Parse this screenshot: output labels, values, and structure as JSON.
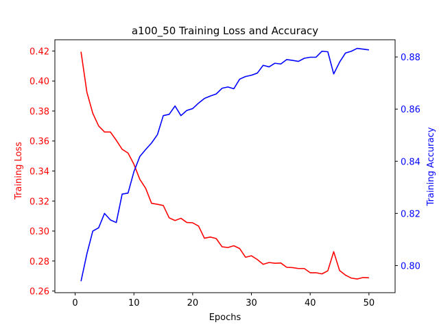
{
  "chart_data": {
    "type": "line",
    "title": "a100_50 Training Loss and Accuracy",
    "xlabel": "Epochs",
    "x": [
      1,
      2,
      3,
      4,
      5,
      6,
      7,
      8,
      9,
      10,
      11,
      12,
      13,
      14,
      15,
      16,
      17,
      18,
      19,
      20,
      21,
      22,
      23,
      24,
      25,
      26,
      27,
      28,
      29,
      30,
      31,
      32,
      33,
      34,
      35,
      36,
      37,
      38,
      39,
      40,
      41,
      42,
      43,
      44,
      45,
      46,
      47,
      48,
      49,
      50
    ],
    "xlim": [
      -3.45,
      54.45
    ],
    "xticks": [
      0,
      10,
      20,
      30,
      40,
      50
    ],
    "grid": false,
    "legend": "none",
    "series": [
      {
        "axis": "left",
        "ylabel": "Training Loss",
        "color": "#ff0000",
        "ylim": [
          0.2589,
          0.4275
        ],
        "yticks": [
          0.26,
          0.28,
          0.3,
          0.32,
          0.34,
          0.36,
          0.38,
          0.4,
          0.42
        ],
        "values": [
          0.4195,
          0.3925,
          0.3785,
          0.37,
          0.366,
          0.366,
          0.3605,
          0.3545,
          0.352,
          0.3445,
          0.3345,
          0.3285,
          0.3185,
          0.3178,
          0.317,
          0.3088,
          0.307,
          0.3085,
          0.3057,
          0.3055,
          0.3033,
          0.2952,
          0.296,
          0.295,
          0.2895,
          0.289,
          0.2902,
          0.2883,
          0.2825,
          0.2835,
          0.281,
          0.2778,
          0.279,
          0.2785,
          0.2787,
          0.2758,
          0.2756,
          0.275,
          0.275,
          0.2722,
          0.2722,
          0.2714,
          0.2735,
          0.2862,
          0.2737,
          0.2706,
          0.2686,
          0.268,
          0.269,
          0.2688
        ]
      },
      {
        "axis": "right",
        "ylabel": "Training Accuracy",
        "color": "#0000ff",
        "ylim": [
          0.7896,
          0.8866
        ],
        "yticks": [
          0.8,
          0.82,
          0.84,
          0.86,
          0.88
        ],
        "values": [
          0.794,
          0.8045,
          0.8132,
          0.8145,
          0.82,
          0.8175,
          0.8165,
          0.8274,
          0.8278,
          0.836,
          0.8418,
          0.8445,
          0.847,
          0.8502,
          0.8575,
          0.858,
          0.8612,
          0.8575,
          0.8595,
          0.8602,
          0.8623,
          0.8641,
          0.865,
          0.8658,
          0.868,
          0.8685,
          0.8678,
          0.8715,
          0.8725,
          0.873,
          0.8738,
          0.8768,
          0.8762,
          0.8776,
          0.8773,
          0.879,
          0.8787,
          0.8783,
          0.8795,
          0.8799,
          0.8799,
          0.8822,
          0.882,
          0.8735,
          0.878,
          0.8815,
          0.8822,
          0.8833,
          0.883,
          0.8827
        ]
      }
    ]
  }
}
